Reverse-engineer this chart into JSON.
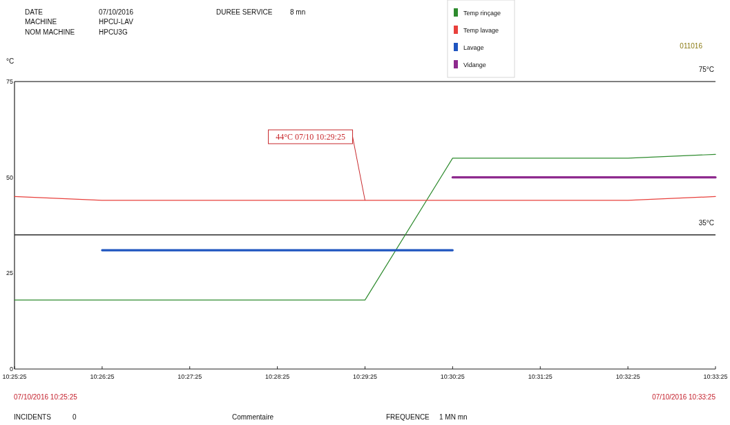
{
  "chart_data": {
    "type": "line",
    "ylabel": "°C",
    "x": [
      10.42361,
      10.44028,
      10.45694,
      10.47361,
      10.49028,
      10.50694,
      10.52361,
      10.54028,
      10.55694
    ],
    "series": [
      {
        "name": "Temp rinçage",
        "color": "#2e8b2e",
        "values": [
          18,
          18,
          18,
          18,
          18,
          55,
          55,
          55,
          56
        ]
      },
      {
        "name": "Temp lavage",
        "color": "#e8403c",
        "values": [
          45,
          44,
          44,
          44,
          44,
          44,
          44,
          44,
          45
        ]
      },
      {
        "name": "Lavage",
        "color": "#1f55c0",
        "values": [
          null,
          31,
          31,
          31,
          31,
          31,
          null,
          null,
          null
        ]
      },
      {
        "name": "Vidange",
        "color": "#8e2a8e",
        "values": [
          null,
          null,
          null,
          null,
          null,
          50,
          50,
          50,
          50
        ]
      }
    ],
    "xlim": [
      10.42361,
      10.55694
    ],
    "ylim": [
      0,
      75
    ],
    "xticks": [
      {
        "value": 10.42361,
        "label": "10:25:25"
      },
      {
        "value": 10.44028,
        "label": "10:26:25"
      },
      {
        "value": 10.45694,
        "label": "10:27:25"
      },
      {
        "value": 10.47361,
        "label": "10:28:25"
      },
      {
        "value": 10.49028,
        "label": "10:29:25"
      },
      {
        "value": 10.50694,
        "label": "10:30:25"
      },
      {
        "value": 10.52361,
        "label": "10:31:25"
      },
      {
        "value": 10.54028,
        "label": "10:32:25"
      },
      {
        "value": 10.55694,
        "label": "10:33:25"
      }
    ],
    "yticks": [
      0,
      25,
      50,
      75
    ],
    "ref_lines": [
      {
        "axis": "y",
        "value": 75,
        "label": "75°C",
        "color": "#000000"
      },
      {
        "axis": "y",
        "value": 35,
        "label": "35°C",
        "color": "#000000"
      }
    ],
    "legend": "top",
    "annotations": [
      "DATE",
      "07/10/2016",
      "MACHINE",
      "HPCU-LAV",
      "NOM MACHINE",
      "HPCU3G",
      "DUREE SERVICE",
      "8 mn",
      "011016",
      "07/10/2016 10:25:25",
      "07/10/2016 10:33:25",
      "INCIDENTS",
      "0",
      "Commentaire",
      "FREQUENCE",
      "1 MN mn",
      {
        "text": "44°C 07/10 10:29:25",
        "x": 10.49028,
        "y": 44
      }
    ]
  }
}
